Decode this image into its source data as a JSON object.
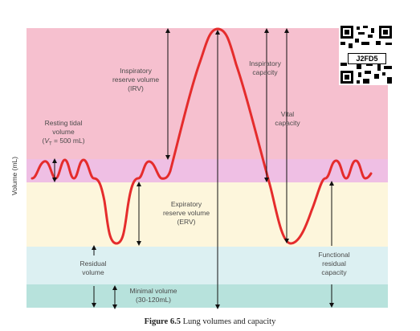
{
  "diagram": {
    "y_axis_label": "Volume (mL)",
    "labels": {
      "irv": [
        "Inspiratory",
        "reserve volume",
        "(IRV)"
      ],
      "inspiratory_capacity": [
        "Inspiratory",
        "capacity"
      ],
      "vital_capacity": [
        "Vital",
        "capacity"
      ],
      "resting_tidal": [
        "Resting tidal",
        "volume"
      ],
      "resting_tidal_vt_symbol": "V",
      "resting_tidal_vt_sub": "T",
      "resting_tidal_vt_value": " = 500 mL)",
      "erv": [
        "Expiratory",
        "reserve volume",
        "(ERV)"
      ],
      "residual": [
        "Residual",
        "volume"
      ],
      "frc": [
        "Functional",
        "residual",
        "capacity"
      ],
      "minimal": [
        "Minimal volume",
        "(30-120mL)"
      ]
    },
    "qr_code_text": "J2FD5",
    "colors": {
      "irv_band": "#f6c0cf",
      "tidal_band": "#efbfe4",
      "erv_band": "#fdf6dc",
      "residual_band": "#dcf0f2",
      "minimal_band": "#b7e2dc",
      "curve": "#e52c2c"
    }
  },
  "caption": {
    "figure_number": "Figure 6.5",
    "text": " Lung volumes and capacity"
  }
}
